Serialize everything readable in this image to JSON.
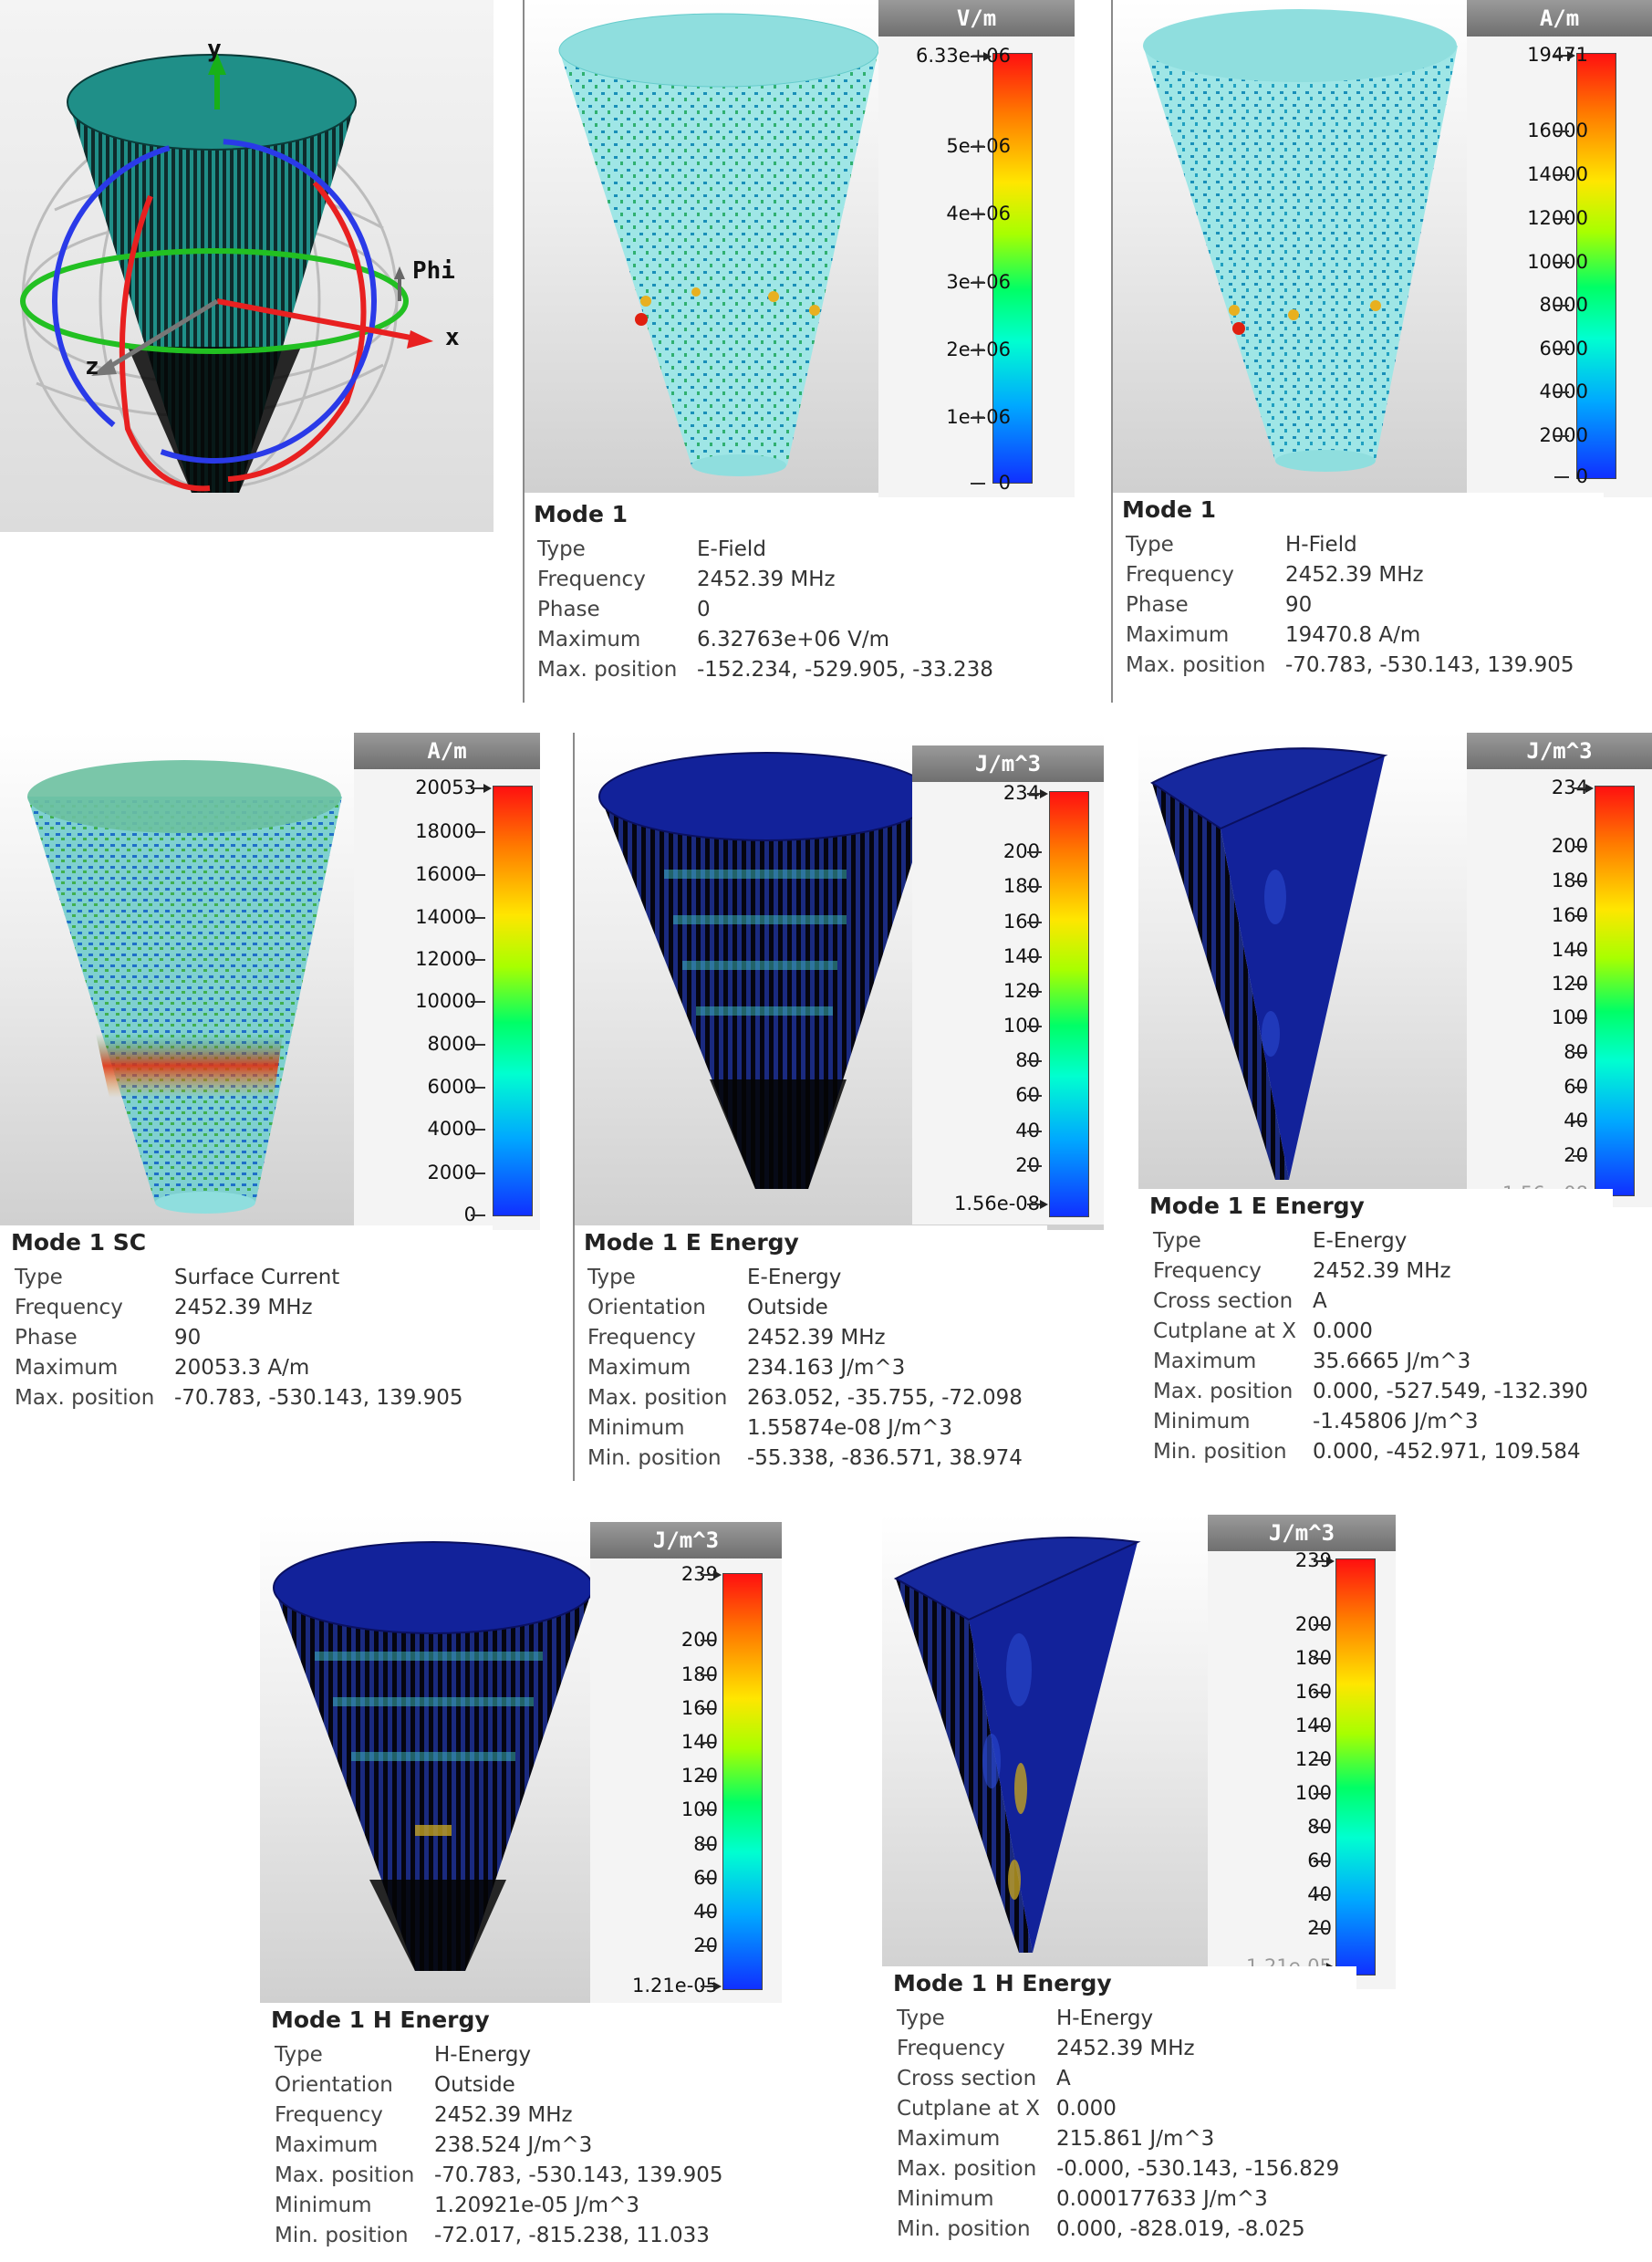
{
  "colors": {
    "scale_top": "#ff1010",
    "scale_bottom": "#1030ff",
    "cone_dark": "#0a0a0a",
    "teal_cap": "#2a9a90",
    "cyan_body": "#8fe0e0",
    "energy_blue": "#12229a"
  },
  "icons": {
    "axes": "orientation-axes-icon",
    "tick_arrow": "tick-arrow-icon"
  },
  "axes_widget": {
    "y_label": "y",
    "x_label": "x",
    "z_label": "z",
    "phi_label": "Phi"
  },
  "panels": [
    {
      "id": "efield",
      "unit": "V/m",
      "max_label": "6.33e+06",
      "ticks": [
        "5e+06",
        "4e+06",
        "3e+06",
        "2e+06",
        "1e+06",
        "0"
      ],
      "title": "Mode 1",
      "rows": [
        [
          "Type",
          "E-Field"
        ],
        [
          "Frequency",
          "2452.39 MHz"
        ],
        [
          "Phase",
          "0"
        ],
        [
          "Maximum",
          "6.32763e+06 V/m"
        ],
        [
          "Max. position",
          "-152.234,  -529.905,  -33.238"
        ]
      ]
    },
    {
      "id": "hfield",
      "unit": "A/m",
      "max_label": "19471",
      "ticks": [
        "16000",
        "14000",
        "12000",
        "10000",
        "8000",
        "6000",
        "4000",
        "2000",
        "0"
      ],
      "title": "Mode 1",
      "rows": [
        [
          "Type",
          "H-Field"
        ],
        [
          "Frequency",
          "2452.39 MHz"
        ],
        [
          "Phase",
          "90"
        ],
        [
          "Maximum",
          "19470.8 A/m"
        ],
        [
          "Max. position",
          "-70.783,  -530.143,  139.905"
        ]
      ]
    },
    {
      "id": "surface",
      "unit": "A/m",
      "max_label": "20053",
      "ticks": [
        "18000",
        "16000",
        "14000",
        "12000",
        "10000",
        "8000",
        "6000",
        "4000",
        "2000",
        "0"
      ],
      "title": "Mode 1 SC",
      "rows": [
        [
          "Type",
          "Surface Current"
        ],
        [
          "Frequency",
          "2452.39 MHz"
        ],
        [
          "Phase",
          "90"
        ],
        [
          "Maximum",
          "20053.3 A/m"
        ],
        [
          "Max. position",
          "-70.783,  -530.143,  139.905"
        ]
      ]
    },
    {
      "id": "eenergy_out",
      "unit": "J/m^3",
      "max_label": "234",
      "ticks": [
        "200",
        "180",
        "160",
        "140",
        "120",
        "100",
        "80",
        "60",
        "40",
        "20"
      ],
      "min_label": "1.56e-08",
      "title": "Mode 1 E Energy",
      "rows": [
        [
          "Type",
          "E-Energy"
        ],
        [
          "Orientation",
          "Outside"
        ],
        [
          "Frequency",
          "2452.39 MHz"
        ],
        [
          "Maximum",
          "234.163 J/m^3"
        ],
        [
          "Max. position",
          "263.052,  -35.755,  -72.098"
        ],
        [
          "Minimum",
          "1.55874e-08 J/m^3"
        ],
        [
          "Min. position",
          "-55.338,  -836.571,   38.974"
        ]
      ]
    },
    {
      "id": "eenergy_cut",
      "unit": "J/m^3",
      "max_label": "234",
      "ticks": [
        "200",
        "180",
        "160",
        "140",
        "120",
        "100",
        "80",
        "60",
        "40",
        "20"
      ],
      "min_label": "1.56e-08",
      "title": "Mode 1 E Energy",
      "rows": [
        [
          "Type",
          "E-Energy"
        ],
        [
          "Frequency",
          "2452.39 MHz"
        ],
        [
          "Cross section",
          "A"
        ],
        [
          "Cutplane at X",
          "0.000"
        ],
        [
          "Maximum",
          "35.6665 J/m^3"
        ],
        [
          "Max. position",
          "0.000,  -527.549,  -132.390"
        ],
        [
          "Minimum",
          "-1.45806 J/m^3"
        ],
        [
          "Min. position",
          "0.000,  -452.971,  109.584"
        ]
      ]
    },
    {
      "id": "henergy_out",
      "unit": "J/m^3",
      "max_label": "239",
      "ticks": [
        "200",
        "180",
        "160",
        "140",
        "120",
        "100",
        "80",
        "60",
        "40",
        "20"
      ],
      "min_label": "1.21e-05",
      "title": "Mode 1 H Energy",
      "rows": [
        [
          "Type",
          "H-Energy"
        ],
        [
          "Orientation",
          "Outside"
        ],
        [
          "Frequency",
          "2452.39 MHz"
        ],
        [
          "Maximum",
          "238.524 J/m^3"
        ],
        [
          "Max. position",
          "-70.783,  -530.143,  139.905"
        ],
        [
          "Minimum",
          "1.20921e-05 J/m^3"
        ],
        [
          "Min. position",
          "-72.017,  -815.238,   11.033"
        ]
      ]
    },
    {
      "id": "henergy_cut",
      "unit": "J/m^3",
      "max_label": "239",
      "ticks": [
        "200",
        "180",
        "160",
        "140",
        "120",
        "100",
        "80",
        "60",
        "40",
        "20"
      ],
      "min_label": "1.21e-05",
      "title": "Mode 1 H Energy",
      "rows": [
        [
          "Type",
          "H-Energy"
        ],
        [
          "Frequency",
          "2452.39 MHz"
        ],
        [
          "Cross section",
          "A"
        ],
        [
          "Cutplane at X",
          "0.000"
        ],
        [
          "Maximum",
          "215.861 J/m^3"
        ],
        [
          "Max. position",
          "-0.000,  -530.143,  -156.829"
        ],
        [
          "Minimum",
          "0.000177633 J/m^3"
        ],
        [
          "Min. position",
          "0.000,  -828.019,  -8.025"
        ]
      ]
    }
  ]
}
